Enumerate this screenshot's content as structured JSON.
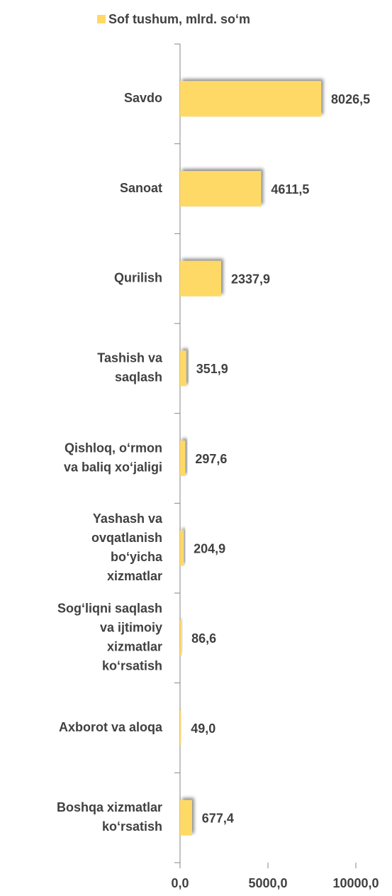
{
  "chart_data": {
    "type": "bar",
    "orientation": "horizontal",
    "series": [
      {
        "name": "Sof tushum, mlrd. so‘m",
        "color": "#ffd966",
        "values": [
          8026.5,
          4611.5,
          2337.9,
          351.9,
          297.6,
          204.9,
          86.6,
          49.0,
          677.4
        ],
        "value_labels": [
          "8026,5",
          "4611,5",
          "2337,9",
          "351,9",
          "297,6",
          "204,9",
          "86,6",
          "49,0",
          "677,4"
        ]
      }
    ],
    "categories": [
      [
        "Savdo"
      ],
      [
        "Sanoat"
      ],
      [
        "Qurilish"
      ],
      [
        "Tashish va",
        "saqlash"
      ],
      [
        "Qishloq, o‘rmon",
        "va baliq xo‘jaligi"
      ],
      [
        "Yashash va",
        "ovqatlanish",
        "bo‘yicha",
        "xizmatlar"
      ],
      [
        "Sog‘liqni saqlash",
        "va ijtimoiy",
        "xizmatlar",
        "ko‘rsatish"
      ],
      [
        "Axborot va aloqa"
      ],
      [
        "Boshqa xizmatlar",
        "ko‘rsatish"
      ]
    ],
    "xlim": [
      0,
      10000
    ],
    "xticks": [
      {
        "value": 0,
        "label": "0,0"
      },
      {
        "value": 5000,
        "label": "5000,0"
      },
      {
        "value": 10000,
        "label": "10000,0"
      }
    ],
    "legend": "top"
  }
}
